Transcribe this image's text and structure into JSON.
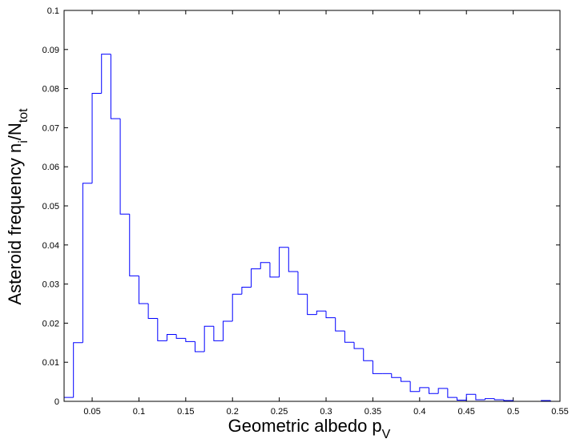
{
  "chart_data": {
    "type": "bar",
    "style": "step-histogram",
    "title": "",
    "xlabel": {
      "main": "Geometric albedo p",
      "sub": "V"
    },
    "ylabel": {
      "main": "Asteroid frequency n",
      "sub1": "i",
      "mid": "/N",
      "sub2": "tot"
    },
    "xlim": [
      0.02,
      0.55
    ],
    "ylim": [
      0,
      0.1
    ],
    "xticks": [
      0.05,
      0.1,
      0.15,
      0.2,
      0.25,
      0.3,
      0.35,
      0.4,
      0.45,
      0.5,
      0.55
    ],
    "xtick_labels": [
      "0.05",
      "0.1",
      "0.15",
      "0.2",
      "0.25",
      "0.3",
      "0.35",
      "0.4",
      "0.45",
      "0.5",
      "0.55"
    ],
    "yticks": [
      0,
      0.01,
      0.02,
      0.03,
      0.04,
      0.05,
      0.06,
      0.07,
      0.08,
      0.09,
      0.1
    ],
    "ytick_labels": [
      "0",
      "0.01",
      "0.02",
      "0.03",
      "0.04",
      "0.05",
      "0.06",
      "0.07",
      "0.08",
      "0.09",
      "0.1"
    ],
    "bin_width": 0.01,
    "bin_start": 0.02,
    "values": [
      0.001,
      0.015,
      0.0558,
      0.0788,
      0.0888,
      0.0723,
      0.0479,
      0.0321,
      0.025,
      0.0212,
      0.0155,
      0.0171,
      0.0161,
      0.0153,
      0.0127,
      0.0192,
      0.0155,
      0.0205,
      0.0274,
      0.0292,
      0.0339,
      0.0355,
      0.0318,
      0.0394,
      0.0332,
      0.0274,
      0.0222,
      0.0231,
      0.0214,
      0.018,
      0.0151,
      0.0135,
      0.0104,
      0.0071,
      0.0071,
      0.0061,
      0.0051,
      0.0025,
      0.0035,
      0.002,
      0.0033,
      0.001,
      0.0003,
      0.0018,
      0.0004,
      0.0007,
      0.0004,
      0.0002,
      0.0,
      0.0,
      0.0,
      0.0002,
      0.0
    ],
    "line_color": "#0000ff",
    "axis_color": "#000000",
    "grid": false,
    "box": true
  }
}
